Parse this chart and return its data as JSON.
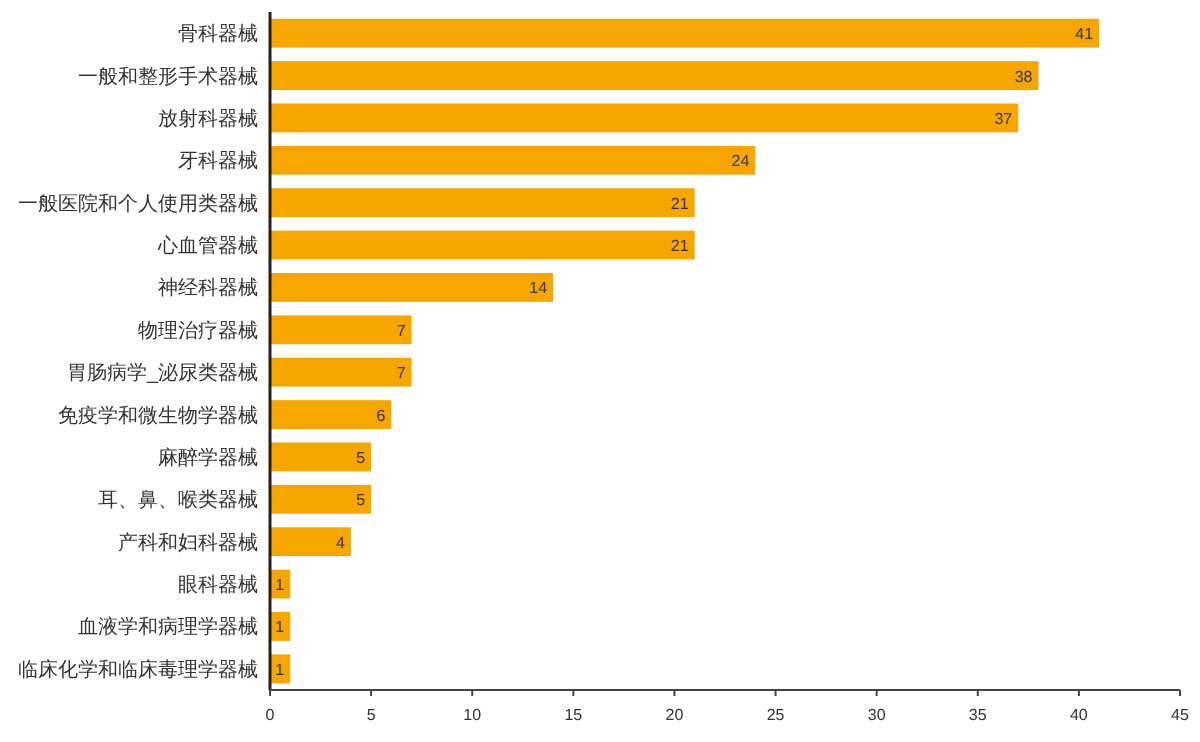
{
  "chart_data": {
    "type": "bar",
    "orientation": "horizontal",
    "categories": [
      "骨科器械",
      "一般和整形手术器械",
      "放射科器械",
      "牙科器械",
      "一般医院和个人使用类器械",
      "心血管器械",
      "神经科器械",
      "物理治疗器械",
      "胃肠病学_泌尿类器械",
      "免疫学和微生物学器械",
      "麻醉学器械",
      "耳、鼻、喉类器械",
      "产科和妇科器械",
      "眼科器械",
      "血液学和病理学器械",
      "临床化学和临床毒理学器械"
    ],
    "values": [
      41,
      38,
      37,
      24,
      21,
      21,
      14,
      7,
      7,
      6,
      5,
      5,
      4,
      1,
      1,
      1
    ],
    "color": "#f7a600",
    "data_labels": true,
    "xlim": [
      0,
      45
    ],
    "xticks": [
      0,
      5,
      10,
      15,
      20,
      25,
      30,
      35,
      40,
      45
    ]
  }
}
